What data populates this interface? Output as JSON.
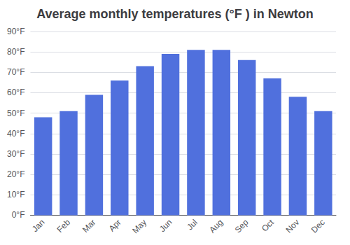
{
  "chart_data": {
    "type": "bar",
    "title": "Average monthly temperatures (°F ) in Newton",
    "categories": [
      "Jan",
      "Feb",
      "Mar",
      "Apr",
      "May",
      "Jun",
      "Jul",
      "Aug",
      "Sep",
      "Oct",
      "Nov",
      "Dec"
    ],
    "values": [
      48,
      51,
      59,
      66,
      73,
      79,
      81,
      81,
      76,
      67,
      58,
      51
    ],
    "ylim": [
      0,
      90
    ],
    "yticks": [
      {
        "value": 0,
        "label": "0°F"
      },
      {
        "value": 10,
        "label": "10°F"
      },
      {
        "value": 20,
        "label": "20°F"
      },
      {
        "value": 30,
        "label": "30°F"
      },
      {
        "value": 40,
        "label": "40°F"
      },
      {
        "value": 50,
        "label": "50°F"
      },
      {
        "value": 60,
        "label": "60°F"
      },
      {
        "value": 70,
        "label": "70°F"
      },
      {
        "value": 80,
        "label": "80°F"
      },
      {
        "value": 90,
        "label": "90°F"
      }
    ],
    "grid": true
  }
}
